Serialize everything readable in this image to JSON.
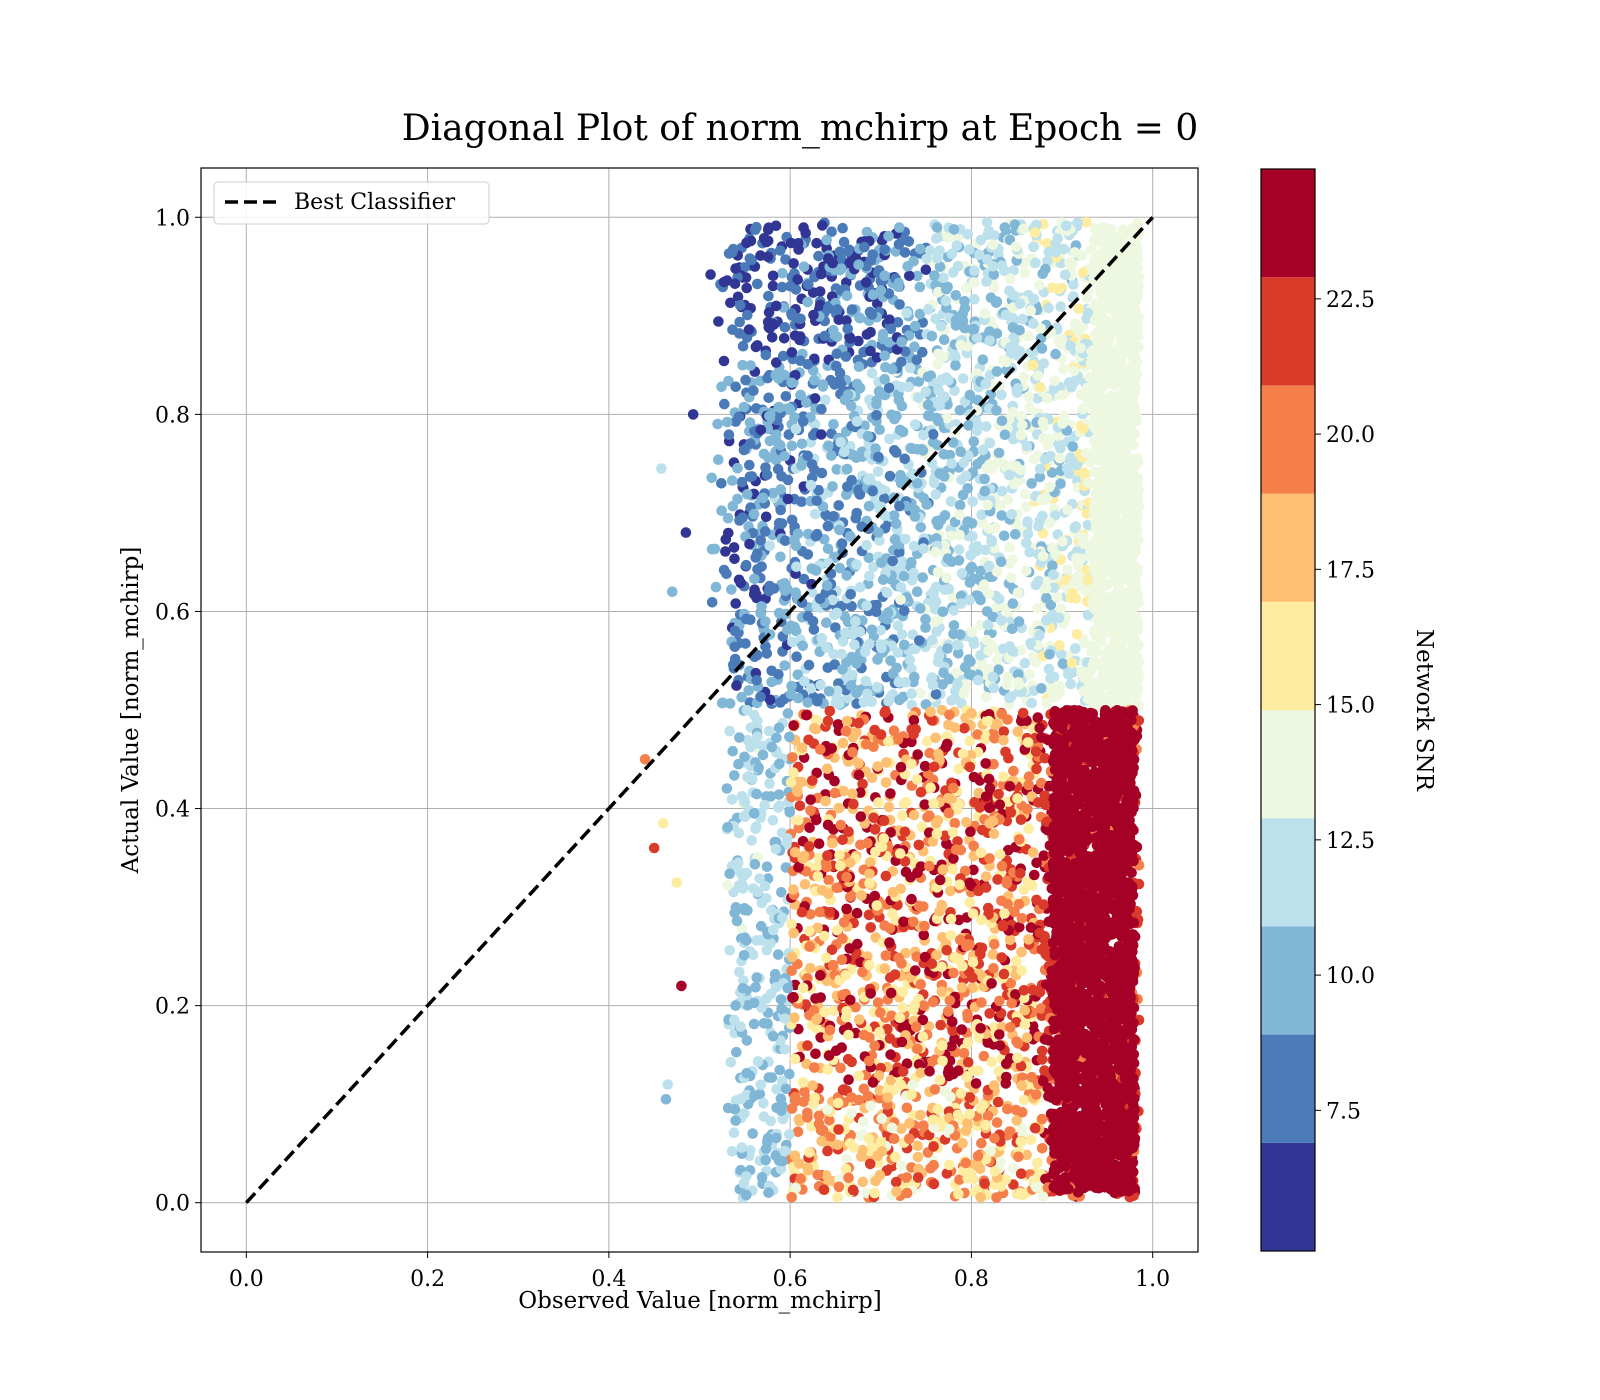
{
  "chart_data": {
    "type": "scatter",
    "title": "Diagonal Plot of norm_mchirp at Epoch = 0",
    "xlabel": "Observed Value [norm_mchirp]",
    "ylabel": "Actual Value [norm_mchirp]",
    "xlim": [
      -0.05,
      1.05
    ],
    "ylim": [
      -0.05,
      1.05
    ],
    "x_ticks": [
      0.0,
      0.2,
      0.4,
      0.6,
      0.8,
      1.0
    ],
    "y_ticks": [
      0.0,
      0.2,
      0.4,
      0.6,
      0.8,
      1.0
    ],
    "x_tick_labels": [
      "0.0",
      "0.2",
      "0.4",
      "0.6",
      "0.8",
      "1.0"
    ],
    "y_tick_labels": [
      "0.0",
      "0.2",
      "0.4",
      "0.6",
      "0.8",
      "1.0"
    ],
    "grid": true,
    "legend": {
      "placement": "top-left",
      "entries": [
        {
          "label": "Best Classifier",
          "style": "dashed",
          "color": "#000000"
        }
      ]
    },
    "reference_line": {
      "name": "Best Classifier",
      "x": [
        0.0,
        1.0
      ],
      "y": [
        0.0,
        1.0
      ]
    },
    "colorbar": {
      "label": "Network SNR",
      "min": 4.9,
      "max": 24.9,
      "ticks": [
        7.5,
        10.0,
        12.5,
        15.0,
        17.5,
        20.0,
        22.5
      ],
      "tick_labels": [
        "7.5",
        "10.0",
        "12.5",
        "15.0",
        "17.5",
        "20.0",
        "22.5"
      ],
      "bins": [
        4.9,
        6.9,
        8.9,
        10.9,
        12.9,
        14.9,
        16.9,
        18.9,
        20.9,
        22.9,
        24.9
      ],
      "colors": [
        "#313695",
        "#4a7ab8",
        "#80b6d6",
        "#bce1ec",
        "#eef7e0",
        "#feeca0",
        "#fdbf71",
        "#f57f4b",
        "#d93a2a",
        "#a50026"
      ]
    },
    "regions": [
      {
        "description": "Upper cluster, actual 0.5-1.0",
        "x_range": [
          0.46,
          0.99
        ],
        "y_range": [
          0.5,
          1.0
        ],
        "snr_range": [
          5,
          15
        ]
      },
      {
        "description": "Lower cluster, actual 0.0-0.5",
        "x_range": [
          0.44,
          0.99
        ],
        "y_range": [
          0.0,
          0.5
        ],
        "snr_range": [
          9,
          25
        ]
      }
    ]
  }
}
